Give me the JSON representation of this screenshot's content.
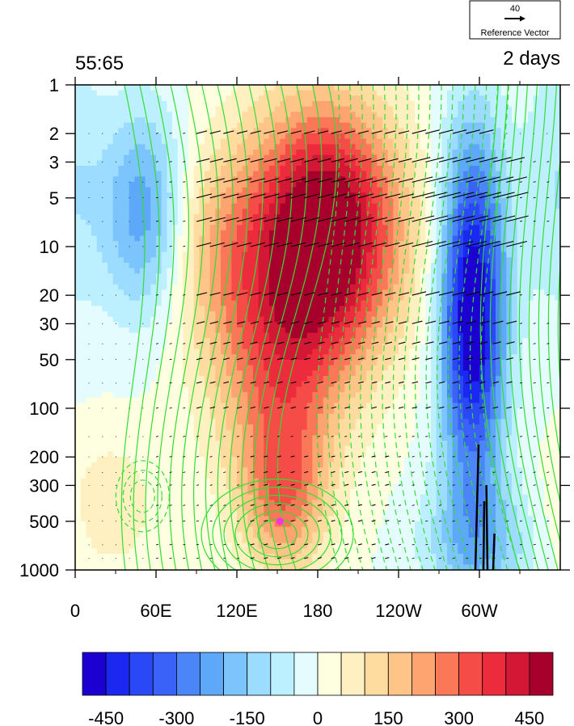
{
  "chart_data": {
    "type": "heatmap",
    "title_left": "55:65",
    "title_right": "2 days",
    "reference_vector": {
      "magnitude": "40",
      "label": "Reference Vector"
    },
    "x_ticks": [
      {
        "lon": 0,
        "label": "0"
      },
      {
        "lon": 60,
        "label": "60E"
      },
      {
        "lon": 120,
        "label": "120E"
      },
      {
        "lon": 180,
        "label": "180"
      },
      {
        "lon": 240,
        "label": "120W"
      },
      {
        "lon": 300,
        "label": "60W"
      }
    ],
    "xlim": [
      0,
      360
    ],
    "y_ticks": [
      1,
      2,
      3,
      5,
      10,
      20,
      30,
      50,
      100,
      200,
      300,
      500,
      1000
    ],
    "ylim": [
      1,
      1000
    ],
    "y_scale": "log-reversed",
    "colorbar": {
      "colors": [
        "#1c00d2",
        "#1a28f0",
        "#2a48f6",
        "#3a62f8",
        "#4a86f8",
        "#5ea8fa",
        "#7cc4fc",
        "#9cdcfe",
        "#bcf0fe",
        "#e4fcfe",
        "#fefee0",
        "#fef0c0",
        "#fedca0",
        "#fec488",
        "#fea470",
        "#fa7858",
        "#f64c48",
        "#ec2c3c",
        "#d21834",
        "#a8002c"
      ],
      "tick_values": [
        -450,
        -300,
        -150,
        0,
        150,
        300,
        450
      ],
      "tick_labels": [
        "-450",
        "-300",
        "-150",
        "0",
        "150",
        "300",
        "450"
      ],
      "vmin": -500,
      "vmax": 500
    },
    "field": {
      "description_blobs": [
        {
          "lon": 185,
          "p": 8,
          "amp": 560,
          "slon": 40,
          "slp": 0.55
        },
        {
          "lon": 150,
          "p": 60,
          "amp": 240,
          "slon": 35,
          "slp": 0.55
        },
        {
          "lon": 155,
          "p": 350,
          "amp": 230,
          "slon": 22,
          "slp": 0.35
        },
        {
          "lon": 105,
          "p": 10,
          "amp": 130,
          "slon": 25,
          "slp": 0.45
        },
        {
          "lon": 295,
          "p": 25,
          "amp": -540,
          "slon": 17,
          "slp": 0.75
        },
        {
          "lon": 300,
          "p": 700,
          "amp": -160,
          "slon": 30,
          "slp": 0.3
        },
        {
          "lon": 50,
          "p": 6,
          "amp": -230,
          "slon": 22,
          "slp": 0.45
        },
        {
          "lon": 25,
          "p": 400,
          "amp": 90,
          "slon": 25,
          "slp": 0.3
        },
        {
          "lon": 355,
          "p": 4,
          "amp": -90,
          "slon": 18,
          "slp": 0.6
        }
      ]
    },
    "marker": {
      "lon": 152,
      "p": 500,
      "color": "#ff33dd"
    },
    "contour_color": "#33dd33"
  }
}
